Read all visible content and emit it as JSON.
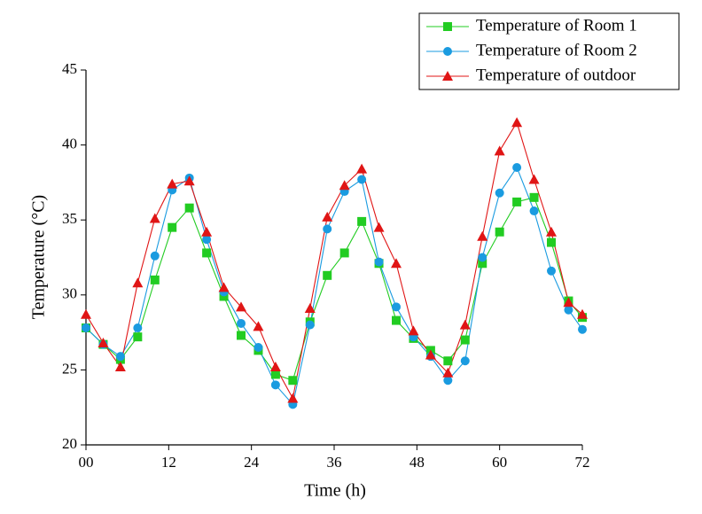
{
  "chart_data": {
    "type": "line",
    "x_label": "Time (h)",
    "y_label": "Temperature (°C)",
    "x": [
      0,
      2.5,
      5,
      7.5,
      10,
      12.5,
      15,
      17.5,
      20,
      22.5,
      25,
      27.5,
      30,
      32.5,
      35,
      37.5,
      40,
      42.5,
      45,
      47.5,
      50,
      52.5,
      55,
      57.5,
      60,
      62.5,
      65,
      67.5,
      70,
      72
    ],
    "series": [
      {
        "name": "Temperature of Room 1",
        "color": "#22cc22",
        "marker": "square",
        "values": [
          27.8,
          26.7,
          25.7,
          27.2,
          31.0,
          34.5,
          35.8,
          32.8,
          29.9,
          27.3,
          26.3,
          24.7,
          24.3,
          28.2,
          31.3,
          32.8,
          34.9,
          32.1,
          28.3,
          27.1,
          26.3,
          25.6,
          27.0,
          32.1,
          34.2,
          36.2,
          36.5,
          33.5,
          29.6,
          28.5
        ]
      },
      {
        "name": "Temperature of Room 2",
        "color": "#1a9be0",
        "marker": "circle",
        "values": [
          27.8,
          26.7,
          25.9,
          27.8,
          32.6,
          37.0,
          37.8,
          33.7,
          30.2,
          28.1,
          26.5,
          24.0,
          22.7,
          28.0,
          34.4,
          36.9,
          37.7,
          32.2,
          29.2,
          27.2,
          25.9,
          24.3,
          25.6,
          32.5,
          36.8,
          38.5,
          35.6,
          31.6,
          29.0,
          27.7
        ]
      },
      {
        "name": "Temperature of outdoor",
        "color": "#e01515",
        "marker": "triangle",
        "values": [
          28.7,
          26.8,
          25.2,
          30.8,
          35.1,
          37.4,
          37.6,
          34.2,
          30.5,
          29.2,
          27.9,
          25.2,
          23.1,
          29.1,
          35.2,
          37.3,
          38.4,
          34.5,
          32.1,
          27.6,
          26.0,
          24.8,
          28.0,
          33.9,
          39.6,
          41.5,
          37.7,
          34.2,
          29.5,
          28.7
        ]
      }
    ],
    "xlim": [
      0,
      72
    ],
    "xticks": [
      {
        "value": 0,
        "label": "00"
      },
      12,
      24,
      36,
      48,
      60,
      72
    ],
    "ylim": [
      20,
      45
    ],
    "yticks": [
      20,
      25,
      30,
      35,
      40,
      45
    ],
    "legend": "top-right"
  }
}
